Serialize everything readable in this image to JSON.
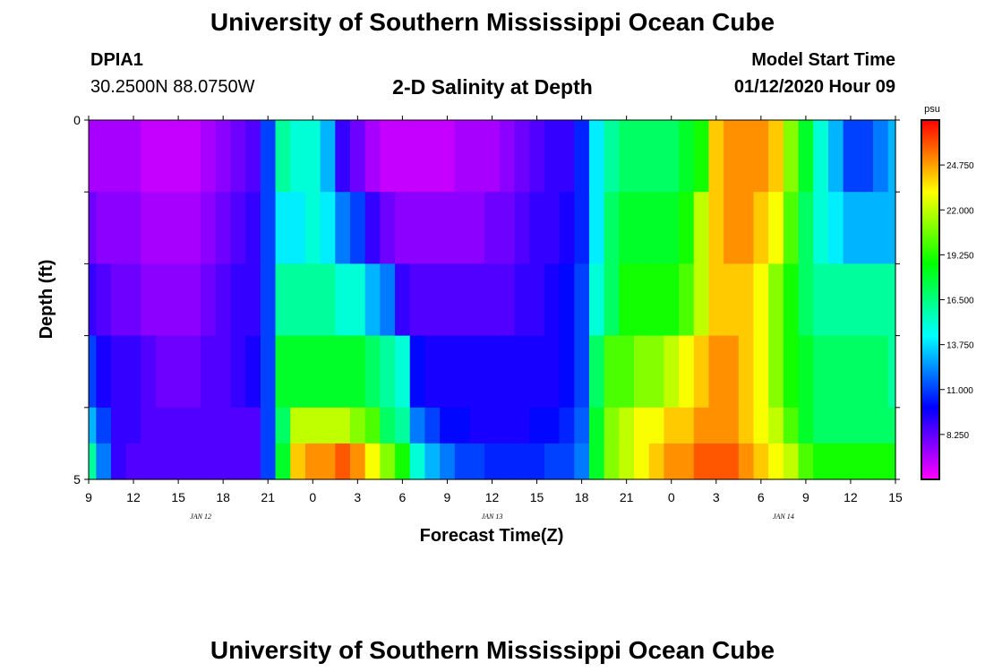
{
  "header": {
    "title": "University of Southern Mississippi Ocean Cube",
    "station_id": "DPIA1",
    "station_coords": "30.2500N 88.0750W",
    "plot_title": "2-D Salinity at Depth",
    "model_start_label": "Model Start Time",
    "model_start_value": "01/12/2020 Hour 09"
  },
  "footer": {
    "title": "University of Southern Mississippi Ocean Cube"
  },
  "chart_data": {
    "type": "heatmap",
    "title": "2-D Salinity at Depth",
    "xlabel": "Forecast Time(Z)",
    "ylabel": "Depth (ft)",
    "ylim": [
      0,
      5
    ],
    "y_tick_labels": [
      "0",
      "5"
    ],
    "y_minor_ticks": [
      0,
      1,
      2,
      3,
      4,
      5
    ],
    "x_hours": [
      0,
      54
    ],
    "x_tick_labels": [
      "9",
      "12",
      "15",
      "18",
      "21",
      "0",
      "3",
      "6",
      "9",
      "12",
      "15",
      "18",
      "21",
      "0",
      "3",
      "6",
      "9",
      "12",
      "15"
    ],
    "date_labels": [
      {
        "text": "JAN 12",
        "hour": 7.5
      },
      {
        "text": "JAN 13",
        "hour": 27.0
      },
      {
        "text": "JAN 14",
        "hour": 46.5
      }
    ],
    "colorbar": {
      "unit": "psu",
      "min": 5.5,
      "max": 27.5,
      "tick_labels": [
        "8.250",
        "11.000",
        "13.750",
        "16.500",
        "19.250",
        "22.000",
        "24.750"
      ],
      "tick_values": [
        8.25,
        11.0,
        13.75,
        16.5,
        19.25,
        22.0,
        24.75
      ]
    },
    "depth_bins": [
      "0-1",
      "1-2",
      "2-3",
      "3-4",
      "4-5",
      "5"
    ],
    "time_hours": [
      0,
      1,
      2,
      3,
      4,
      5,
      6,
      7,
      8,
      9,
      10,
      11,
      12,
      13,
      14,
      15,
      16,
      17,
      18,
      19,
      20,
      21,
      22,
      23,
      24,
      25,
      26,
      27,
      28,
      29,
      30,
      31,
      32,
      33,
      34,
      35,
      36,
      37,
      38,
      39,
      40,
      41,
      42,
      43,
      44,
      45,
      46,
      47,
      48,
      49,
      50,
      51,
      52,
      53,
      54
    ],
    "values": [
      [
        7,
        7,
        7,
        7,
        6.5,
        6.5,
        6.5,
        6.5,
        7,
        7.5,
        8,
        8.5,
        11,
        16,
        15,
        15,
        13,
        9,
        8,
        7,
        6.5,
        6.5,
        6.5,
        6.5,
        6.5,
        7,
        7,
        7,
        7.5,
        8,
        8.5,
        9,
        9,
        10.5,
        14,
        16,
        17,
        17,
        17,
        17,
        18,
        19,
        24,
        25,
        25,
        25,
        24,
        21,
        18,
        15,
        13,
        11,
        11,
        12,
        13
      ],
      [
        8,
        7.5,
        7.5,
        7.5,
        7,
        7,
        7,
        7,
        7.5,
        8,
        8.5,
        9,
        11,
        14,
        14,
        15,
        14,
        12,
        11,
        9,
        8,
        7.5,
        7.5,
        7.5,
        7.5,
        7.5,
        7.5,
        8,
        8,
        8.5,
        9,
        9,
        9.5,
        10.5,
        14,
        17,
        18,
        18,
        18,
        18,
        19,
        22,
        24,
        25,
        25,
        24,
        23,
        20,
        17,
        15,
        14,
        13,
        13,
        13,
        13
      ],
      [
        9,
        8.5,
        8,
        8,
        7.5,
        7.5,
        7.5,
        7.5,
        8,
        8.5,
        9,
        9,
        11,
        16,
        16,
        16,
        16,
        15,
        15,
        13,
        12,
        9,
        8.5,
        8.5,
        8.5,
        8.5,
        8.5,
        8.5,
        8.5,
        9,
        9,
        9.5,
        10,
        11,
        15,
        17,
        19,
        19,
        19,
        19,
        20,
        22,
        24,
        24,
        24,
        23,
        21,
        19,
        17,
        16,
        16,
        16,
        16,
        16,
        16
      ],
      [
        11,
        9.5,
        9,
        9,
        8.5,
        8,
        8,
        8,
        8.5,
        8.5,
        9,
        9.5,
        11,
        18,
        18,
        18,
        18,
        18,
        18,
        17,
        16,
        15,
        10,
        9.5,
        9.5,
        9.5,
        9.5,
        9.5,
        9.5,
        9.5,
        9.5,
        9.5,
        10,
        11,
        17,
        20,
        20,
        21,
        21,
        22,
        23,
        24,
        25,
        25,
        24,
        23,
        21,
        19,
        18,
        17,
        17,
        17,
        17,
        17,
        16
      ],
      [
        13,
        11,
        9,
        9,
        8.5,
        8.5,
        8.5,
        8.5,
        8.5,
        8.5,
        8.5,
        8.5,
        11,
        17,
        22,
        22,
        22,
        22,
        21,
        20,
        17,
        16,
        12,
        11,
        10,
        10,
        9.5,
        9.5,
        9.5,
        9.5,
        10,
        10,
        10.5,
        11.5,
        18,
        21,
        22,
        23,
        23,
        24,
        24,
        25,
        25,
        25,
        24,
        23,
        22,
        20,
        18,
        17,
        17,
        17,
        17,
        17,
        17
      ],
      [
        16,
        12,
        9,
        8.5,
        8.5,
        8.5,
        8.5,
        8.5,
        8.5,
        8.5,
        8.5,
        8.5,
        11,
        18,
        24,
        25,
        25,
        26,
        25,
        23,
        21,
        19,
        15,
        13,
        12,
        11,
        11,
        10.5,
        10.5,
        10.5,
        10.5,
        11,
        11,
        12,
        18,
        21,
        22,
        23,
        24,
        25,
        25,
        26,
        26,
        26,
        25,
        24,
        23,
        22,
        20,
        19,
        19,
        19,
        19,
        19,
        19
      ]
    ]
  }
}
